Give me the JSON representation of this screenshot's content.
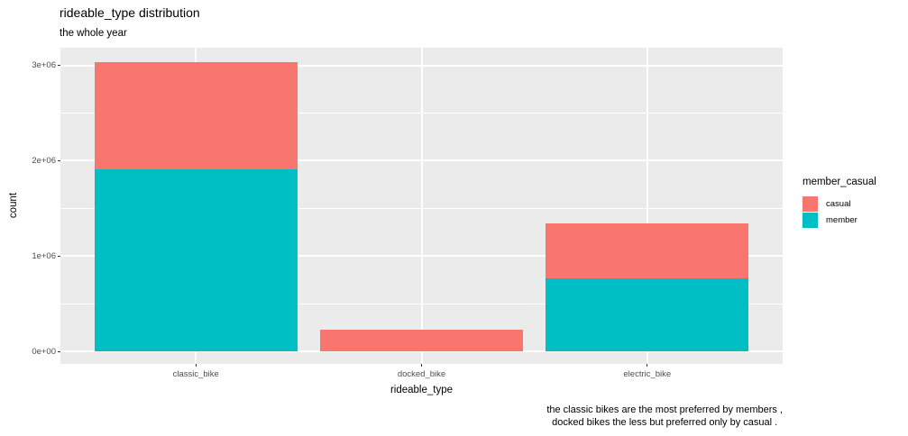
{
  "title": "rideable_type distribution",
  "subtitle": "the whole year",
  "caption_line1": "the classic bikes are the most preferred by members ,",
  "caption_line2": "docked bikes the less but preferred only by casual .",
  "x_axis": {
    "title": "rideable_type"
  },
  "y_axis": {
    "title": "count"
  },
  "legend": {
    "title": "member_casual",
    "items": [
      {
        "label": "casual",
        "color": "#F8766D"
      },
      {
        "label": "member",
        "color": "#00BFC4"
      }
    ]
  },
  "colors": {
    "casual": "#F8766D",
    "member": "#00BFC4",
    "panel_background": "#EBEBEB",
    "gridline": "#FFFFFF",
    "tick_label": "#4D4D4D",
    "tick_mark": "#333333"
  },
  "chart_data": {
    "type": "bar",
    "subtype": "stacked",
    "title": "rideable_type distribution",
    "subtitle": "the whole year",
    "xlabel": "rideable_type",
    "ylabel": "count",
    "categories": [
      "classic_bike",
      "docked_bike",
      "electric_bike"
    ],
    "series": [
      {
        "name": "casual",
        "color": "#F8766D",
        "values": [
          1120000,
          230000,
          570000
        ]
      },
      {
        "name": "member",
        "color": "#00BFC4",
        "values": [
          1910000,
          0,
          770000
        ]
      }
    ],
    "stack_order_bottom_to_top": [
      "member",
      "casual"
    ],
    "totals": [
      3030000,
      230000,
      1340000
    ],
    "ylim": [
      0,
      3185000
    ],
    "yticks": [
      {
        "value": 0,
        "label": "0e+00"
      },
      {
        "value": 1000000,
        "label": "1e+06"
      },
      {
        "value": 2000000,
        "label": "2e+06"
      },
      {
        "value": 3000000,
        "label": "3e+06"
      }
    ],
    "yticks_minor": [
      500000,
      1500000,
      2500000
    ],
    "grid": "white major and minor horizontal lines, white vertical lines at category centers, on gray panel",
    "legend_position": "right"
  }
}
